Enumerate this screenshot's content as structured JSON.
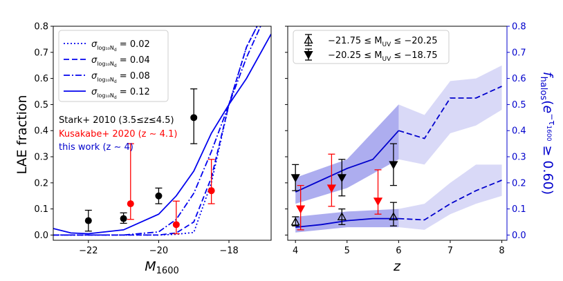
{
  "chart_data": [
    {
      "type": "line",
      "panel": "left",
      "xlabel": "M",
      "xlabel_sub": "1600",
      "ylabel": "LAE fraction",
      "xlim": [
        -23,
        -16.8
      ],
      "ylim": [
        -0.02,
        0.8
      ],
      "xticks": [
        -22,
        -20,
        -18
      ],
      "yticks": [
        0.0,
        0.1,
        0.2,
        0.3,
        0.4,
        0.5,
        0.6,
        0.7,
        0.8
      ],
      "xtick_labels": [
        "−22",
        "−20",
        "−18"
      ],
      "ytick_labels": [
        "0.0",
        "0.1",
        "0.2",
        "0.3",
        "0.4",
        "0.5",
        "0.6",
        "0.7",
        "0.8"
      ],
      "model_series": [
        {
          "name": "σ = 0.02",
          "legend_value": "0.02",
          "dash": "dotted",
          "color": "#0000ee",
          "x": [
            -23,
            -22,
            -21,
            -20,
            -19.5,
            -19,
            -18.5,
            -18,
            -17.5,
            -17.2
          ],
          "y": [
            0.0,
            0.0,
            0.0,
            0.0,
            0.003,
            0.01,
            0.2,
            0.5,
            0.72,
            0.8
          ]
        },
        {
          "name": "σ = 0.04",
          "legend_value": "0.04",
          "dash": "dashed",
          "color": "#0000ee",
          "x": [
            -23,
            -22,
            -21,
            -20,
            -19.5,
            -19,
            -18.5,
            -18,
            -17.5,
            -17.2
          ],
          "y": [
            0.0,
            0.0,
            0.0,
            0.0,
            0.008,
            0.05,
            0.22,
            0.5,
            0.72,
            0.8
          ]
        },
        {
          "name": "σ = 0.08",
          "legend_value": "0.08",
          "dash": "dashdot",
          "color": "#0000ee",
          "x": [
            -23,
            -22,
            -21,
            -20,
            -19.5,
            -19,
            -18.5,
            -18,
            -17.5,
            -17.1
          ],
          "y": [
            0.0,
            0.0,
            0.0,
            0.012,
            0.06,
            0.16,
            0.32,
            0.5,
            0.68,
            0.8
          ]
        },
        {
          "name": "σ = 0.12",
          "legend_value": "0.12",
          "dash": "solid",
          "color": "#0000ee",
          "x": [
            -23,
            -22.5,
            -22,
            -21,
            -20,
            -19.5,
            -19,
            -18.5,
            -18,
            -17.5,
            -16.8
          ],
          "y": [
            0.025,
            0.008,
            0.005,
            0.02,
            0.08,
            0.15,
            0.245,
            0.39,
            0.5,
            0.6,
            0.77
          ]
        }
      ],
      "observations": [
        {
          "name": "Stark+ 2010 (3.5≤z≤4.5)",
          "color": "#000000",
          "points": [
            {
              "x": -22,
              "y": 0.055,
              "lo": 0.015,
              "hi": 0.095
            },
            {
              "x": -21,
              "y": 0.063,
              "lo": 0.045,
              "hi": 0.085
            },
            {
              "x": -20,
              "y": 0.15,
              "lo": 0.12,
              "hi": 0.18
            },
            {
              "x": -19,
              "y": 0.45,
              "lo": 0.35,
              "hi": 0.56
            }
          ]
        },
        {
          "name": "Kusakabe+ 2020 (z ∼ 4.1)",
          "color": "#ff0000",
          "points": [
            {
              "x": -20.8,
              "y": 0.12,
              "lo": 0.06,
              "hi": 0.35
            },
            {
              "x": -19.5,
              "y": 0.04,
              "lo": 0.005,
              "hi": 0.13
            },
            {
              "x": -18.5,
              "y": 0.17,
              "lo": 0.12,
              "hi": 0.29
            }
          ]
        }
      ],
      "legend_prefix": "σ",
      "legend_subscript": "log₁₀N",
      "legend_subsub": "d",
      "annotations": [
        {
          "text": "Stark+ 2010 (3.5≤z≤4.5)",
          "color": "#000000"
        },
        {
          "text": "Kusakabe+ 2020 (z ∼ 4.1)",
          "color": "#ff0000"
        },
        {
          "text": "this work (z ∼ 4)",
          "color": "#0000cc"
        }
      ]
    },
    {
      "type": "line",
      "panel": "right",
      "xlabel": "z",
      "ylabel_right": "f_halos(e^{-τ_1600} ≥ 0.60)",
      "xlim": [
        3.85,
        8.1
      ],
      "ylim": [
        -0.02,
        0.8
      ],
      "xticks": [
        4,
        5,
        6,
        7,
        8
      ],
      "xtick_labels": [
        "4",
        "5",
        "6",
        "7",
        "8"
      ],
      "yticks_right": [
        0.0,
        0.1,
        0.2,
        0.3,
        0.4,
        0.5,
        0.6,
        0.7,
        0.8
      ],
      "ytick_labels_right": [
        "0.0",
        "0.1",
        "0.2",
        "0.3",
        "0.4",
        "0.5",
        "0.6",
        "0.7",
        "0.8"
      ],
      "bands": [
        {
          "name": "bright-band",
          "z": [
            4,
            5,
            6
          ],
          "lo": [
            0.12,
            0.18,
            0.29
          ],
          "hi": [
            0.22,
            0.29,
            0.5
          ],
          "color": "#0000cc",
          "opacity": 0.32
        },
        {
          "name": "bright-band-ext",
          "z": [
            6,
            6.5,
            7,
            7.5,
            8
          ],
          "lo": [
            0.29,
            0.27,
            0.39,
            0.42,
            0.48
          ],
          "hi": [
            0.5,
            0.46,
            0.59,
            0.6,
            0.65
          ],
          "color": "#0000cc",
          "opacity": 0.15
        },
        {
          "name": "faint-band",
          "z": [
            4,
            5,
            6
          ],
          "lo": [
            0.01,
            0.03,
            0.03
          ],
          "hi": [
            0.07,
            0.09,
            0.1
          ],
          "color": "#0000cc",
          "opacity": 0.32
        },
        {
          "name": "faint-band-ext",
          "z": [
            6,
            6.5,
            7,
            7.5,
            8
          ],
          "lo": [
            0.03,
            0.02,
            0.08,
            0.12,
            0.15
          ],
          "hi": [
            0.1,
            0.12,
            0.2,
            0.27,
            0.27
          ],
          "color": "#0000cc",
          "opacity": 0.15
        }
      ],
      "series": [
        {
          "name": "bright-median-solid",
          "dash": "solid",
          "z": [
            4,
            4.5,
            5,
            5.5,
            6
          ],
          "y": [
            0.165,
            0.21,
            0.255,
            0.29,
            0.4
          ]
        },
        {
          "name": "bright-median-dashed",
          "dash": "dashed",
          "z": [
            6,
            6.5,
            7,
            7.5,
            8
          ],
          "y": [
            0.4,
            0.37,
            0.525,
            0.525,
            0.57
          ]
        },
        {
          "name": "faint-median-solid",
          "dash": "solid",
          "z": [
            4,
            4.5,
            5,
            5.5,
            6
          ],
          "y": [
            0.03,
            0.04,
            0.055,
            0.063,
            0.063
          ]
        },
        {
          "name": "faint-median-dashed",
          "dash": "dashed",
          "z": [
            6,
            6.5,
            7,
            7.5,
            8
          ],
          "y": [
            0.063,
            0.058,
            0.12,
            0.17,
            0.21
          ]
        }
      ],
      "observations": [
        {
          "name": "−21.75 ≤ M_UV ≤ −20.25",
          "marker": "triangle-up-open",
          "color": "#000000",
          "points": [
            {
              "x": 4,
              "y": 0.05,
              "lo": 0.035,
              "hi": 0.07
            },
            {
              "x": 4.9,
              "y": 0.07,
              "lo": 0.04,
              "hi": 0.1
            },
            {
              "x": 5.9,
              "y": 0.07,
              "lo": 0.035,
              "hi": 0.125
            }
          ]
        },
        {
          "name": "−20.25 ≤ M_UV ≤ −18.75",
          "marker": "triangle-down-filled",
          "color": "#000000",
          "points": [
            {
              "x": 4,
              "y": 0.22,
              "lo": 0.17,
              "hi": 0.27
            },
            {
              "x": 4.9,
              "y": 0.22,
              "lo": 0.15,
              "hi": 0.29
            },
            {
              "x": 5.9,
              "y": 0.27,
              "lo": 0.19,
              "hi": 0.35
            }
          ]
        },
        {
          "name": "Kusakabe+ 2020",
          "marker": "triangle-down-filled",
          "color": "#ff0000",
          "points": [
            {
              "x": 4.1,
              "y": 0.1,
              "lo": 0.02,
              "hi": 0.19
            },
            {
              "x": 4.7,
              "y": 0.18,
              "lo": 0.11,
              "hi": 0.31
            },
            {
              "x": 5.6,
              "y": 0.13,
              "lo": 0.08,
              "hi": 0.25
            }
          ]
        }
      ],
      "legend": [
        {
          "label": "−21.75 ≤ M",
          "sub": "UV",
          "tail": " ≤ −20.25",
          "marker": "triangle-up-open"
        },
        {
          "label": "−20.25 ≤ M",
          "sub": "UV",
          "tail": " ≤ −18.75",
          "marker": "triangle-down-filled"
        }
      ]
    }
  ]
}
